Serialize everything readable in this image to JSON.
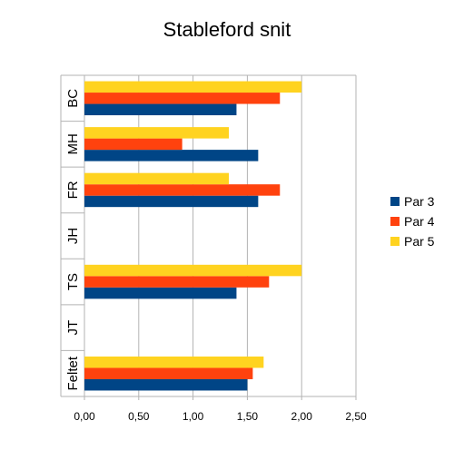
{
  "chart_data": {
    "type": "bar",
    "orientation": "horizontal",
    "title": "Stableford snit",
    "xlabel": "",
    "ylabel": "",
    "xlim": [
      0,
      2.5
    ],
    "xticks": [
      "0,00",
      "0,50",
      "1,00",
      "1,50",
      "2,00",
      "2,50"
    ],
    "categories": [
      "BC",
      "MH",
      "FR",
      "JH",
      "TS",
      "JT",
      "Feltet"
    ],
    "series": [
      {
        "name": "Par 3",
        "color": "#004586",
        "values": [
          1.4,
          1.6,
          1.6,
          null,
          1.4,
          null,
          1.5
        ]
      },
      {
        "name": "Par 4",
        "color": "#ff420e",
        "values": [
          1.8,
          0.9,
          1.8,
          null,
          1.7,
          null,
          1.55
        ]
      },
      {
        "name": "Par 5",
        "color": "#ffd320",
        "values": [
          2.0,
          1.33,
          1.33,
          null,
          2.0,
          null,
          1.65
        ]
      }
    ],
    "grid": true,
    "legend_position": "right"
  }
}
